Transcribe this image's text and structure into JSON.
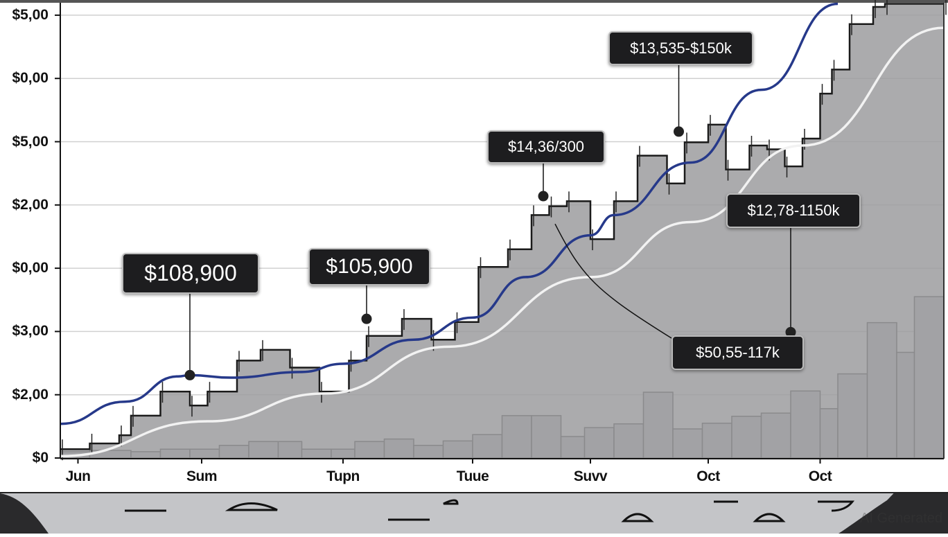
{
  "chart_data": {
    "type": "line",
    "title": "",
    "xlabel": "",
    "ylabel": "",
    "x_unit": "day",
    "xlim": [
      0,
      150
    ],
    "ylim": [
      0,
      7.24
    ],
    "grid": true,
    "y_ticks": [
      {
        "value": 0,
        "label": "$0"
      },
      {
        "value": 1,
        "label": "$2,00"
      },
      {
        "value": 2,
        "label": "$3,00"
      },
      {
        "value": 3,
        "label": "$0,00"
      },
      {
        "value": 4,
        "label": "$2,00"
      },
      {
        "value": 5,
        "label": "$5,00"
      },
      {
        "value": 6,
        "label": "$0,00"
      },
      {
        "value": 7,
        "label": "$5,00"
      }
    ],
    "x_ticks": [
      {
        "value": 3,
        "label": "Jun"
      },
      {
        "value": 24,
        "label": "Sum"
      },
      {
        "value": 48,
        "label": "Tupn"
      },
      {
        "value": 70,
        "label": "Tuue"
      },
      {
        "value": 90,
        "label": "Suvv"
      },
      {
        "value": 110,
        "label": "Oct"
      },
      {
        "value": 129,
        "label": "Oct"
      }
    ],
    "series": [
      {
        "name": "price",
        "color": "#1a1a1a",
        "fill": "#9c9c9f",
        "x": [
          0,
          5,
          10,
          12,
          17,
          22,
          25,
          30,
          34,
          39,
          44,
          49,
          52,
          58,
          63,
          67,
          71,
          76,
          80,
          83,
          86,
          90,
          94,
          98,
          103,
          106,
          110,
          113,
          117,
          120,
          123,
          126,
          129,
          131,
          134,
          138,
          140,
          150
        ],
        "y": [
          0.14,
          0.23,
          0.36,
          0.67,
          1.05,
          0.83,
          1.05,
          1.54,
          1.71,
          1.43,
          1.05,
          1.54,
          1.93,
          2.2,
          1.87,
          2.15,
          3.02,
          3.3,
          3.84,
          3.98,
          4.06,
          3.46,
          4.06,
          4.78,
          4.34,
          4.99,
          5.27,
          4.56,
          4.94,
          4.88,
          4.61,
          5.05,
          5.76,
          6.14,
          6.86,
          7.13,
          7.18,
          7.18
        ]
      },
      {
        "name": "trend-blue",
        "color": "#26398a",
        "x": [
          0,
          11,
          20,
          22,
          29,
          41,
          48,
          60,
          70,
          79,
          90,
          94,
          107,
          119,
          132
        ],
        "y": [
          0.54,
          0.89,
          1.29,
          1.31,
          1.27,
          1.36,
          1.49,
          1.87,
          2.22,
          2.86,
          3.52,
          3.84,
          4.67,
          5.82,
          7.18
        ]
      },
      {
        "name": "trend-white",
        "color": "#f2f2f2",
        "x": [
          0,
          25,
          45,
          66,
          90,
          107,
          126,
          150
        ],
        "y": [
          0.03,
          0.58,
          1.02,
          1.76,
          2.86,
          3.73,
          4.94,
          6.8
        ]
      }
    ],
    "volume": {
      "color": "#c3c3c6",
      "x_start": [
        0,
        5,
        12,
        17,
        22,
        27,
        32,
        37,
        41,
        46,
        50,
        55,
        60,
        65,
        70,
        75,
        80,
        85,
        89,
        94,
        99,
        104,
        109,
        114,
        119,
        124,
        129,
        132,
        137,
        142,
        145
      ],
      "values": [
        0.1,
        0.12,
        0.1,
        0.14,
        0.14,
        0.2,
        0.26,
        0.26,
        0.14,
        0.14,
        0.26,
        0.3,
        0.2,
        0.27,
        0.37,
        0.67,
        0.67,
        0.34,
        0.48,
        0.54,
        1.04,
        0.46,
        0.55,
        0.66,
        0.71,
        1.06,
        0.78,
        1.33,
        2.14,
        1.67,
        2.55
      ]
    },
    "annotations": [
      {
        "label": "$108,900",
        "x": 22,
        "y": 1.31
      },
      {
        "label": "$105,900",
        "x": 52,
        "y": 2.2
      },
      {
        "label": "$14,36/300",
        "x": 82,
        "y": 4.14
      },
      {
        "label": "$13,535-$150k",
        "x": 105,
        "y": 5.16
      },
      {
        "label": "$12,78-1150k",
        "x": 124,
        "y": 1.99
      },
      {
        "label": "$50,55-117k",
        "x": 84,
        "y": 3.7
      }
    ]
  },
  "watermark": "AI Generated"
}
